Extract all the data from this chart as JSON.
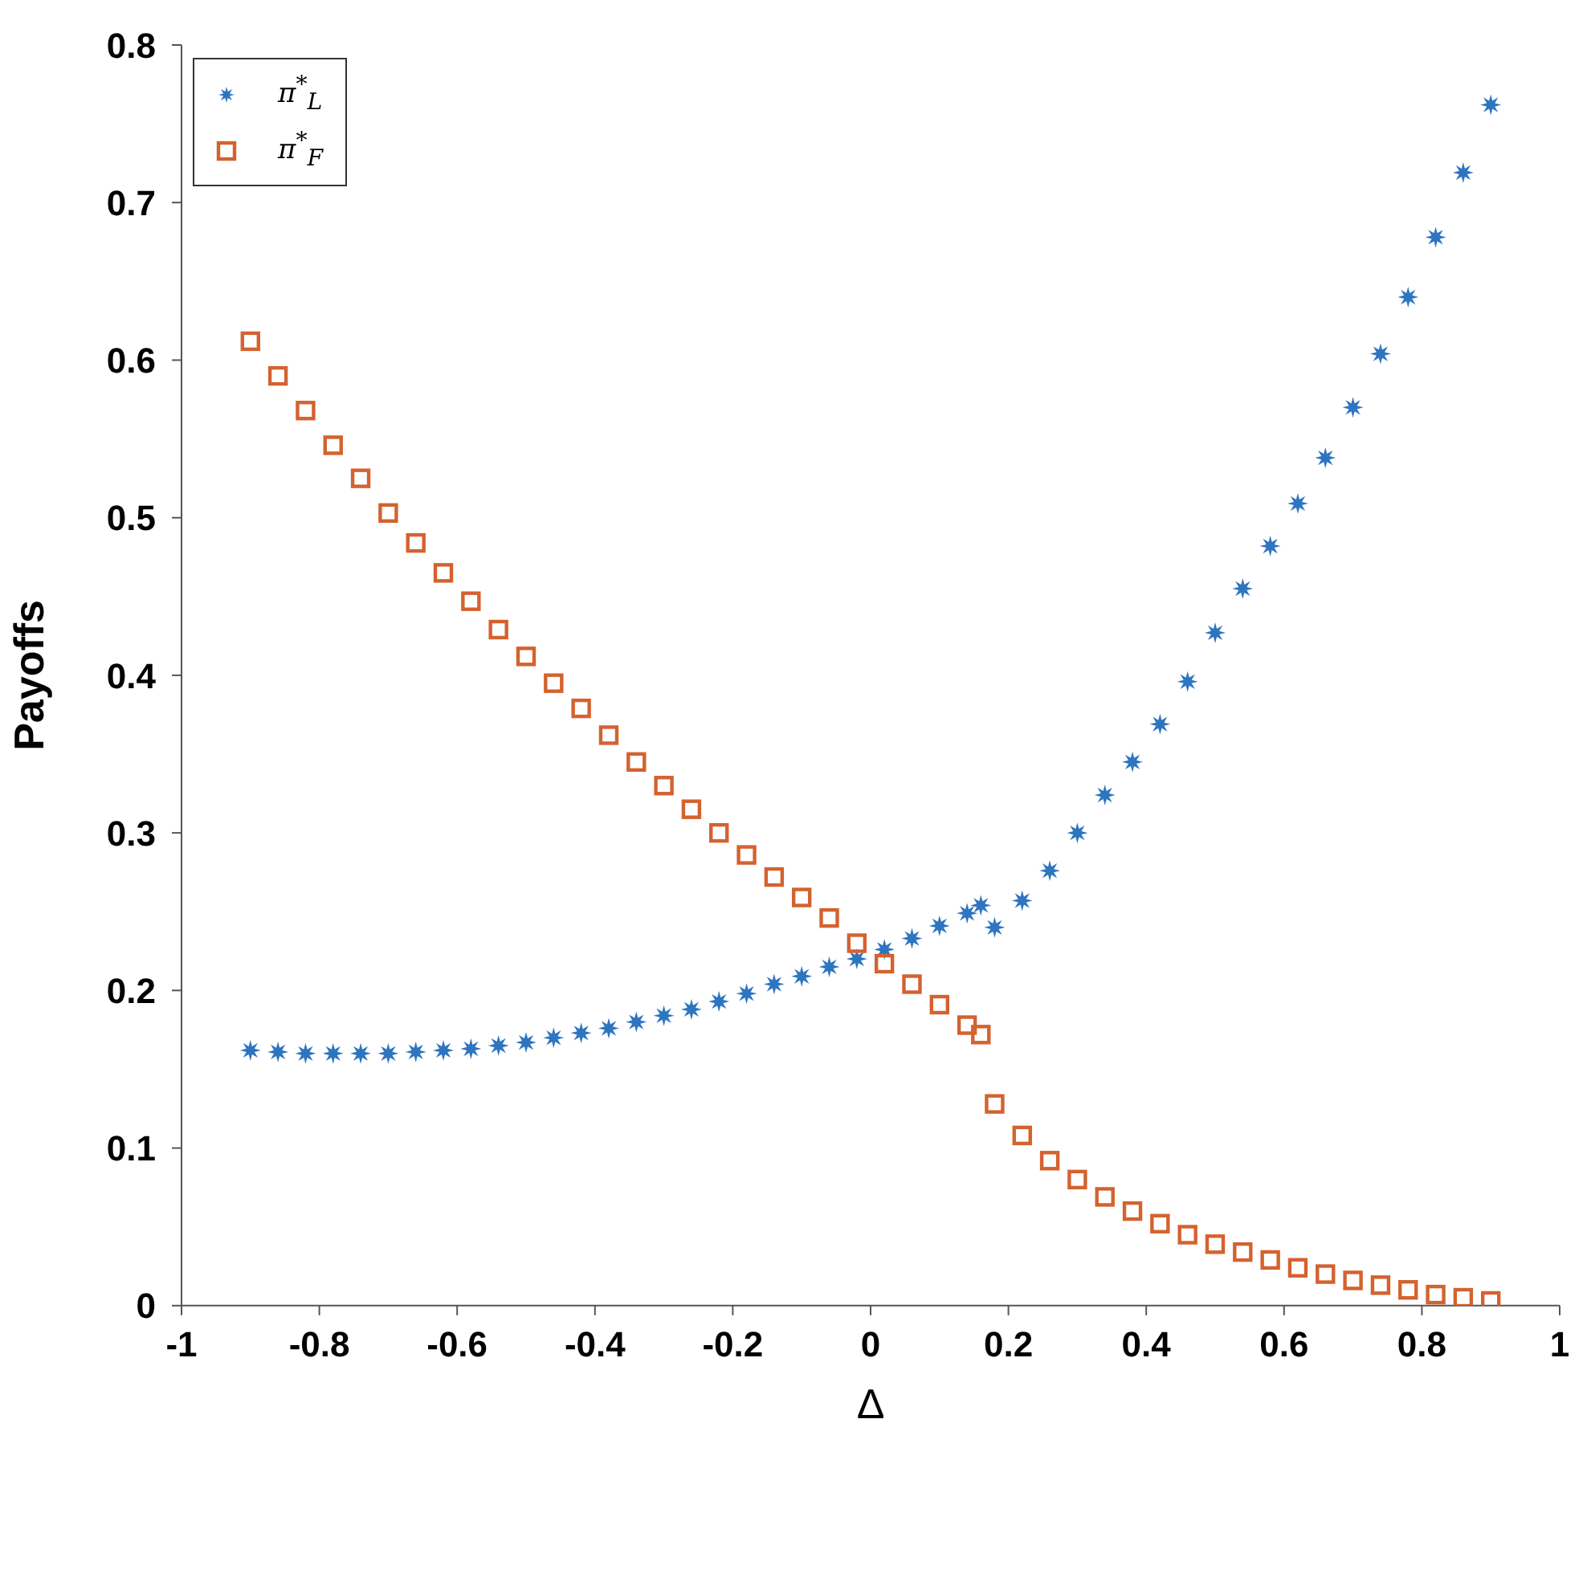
{
  "chart_data": {
    "type": "scatter",
    "xlabel": "Δ",
    "ylabel": "Payoffs",
    "xlim": [
      -1,
      1
    ],
    "xticks": [
      -1,
      -0.8,
      -0.6,
      -0.4,
      -0.2,
      0,
      0.2,
      0.4,
      0.6,
      0.8,
      1
    ],
    "ylim": [
      0,
      0.8
    ],
    "yticks": [
      0,
      0.1,
      0.2,
      0.3,
      0.4,
      0.5,
      0.6,
      0.7,
      0.8
    ],
    "grid": false,
    "legend": "top left",
    "series": [
      {
        "name": "π$^{*}$$_{L}$",
        "color": "#2e75c0",
        "marker": "star",
        "x": [
          -0.9,
          -0.86,
          -0.82,
          -0.78,
          -0.74,
          -0.7,
          -0.66,
          -0.62,
          -0.58,
          -0.54,
          -0.5,
          -0.46,
          -0.42,
          -0.38,
          -0.34,
          -0.3,
          -0.26,
          -0.22,
          -0.18,
          -0.14,
          -0.1,
          -0.06,
          -0.02,
          0.02,
          0.06,
          0.1,
          0.14,
          0.16,
          0.18,
          0.22,
          0.26,
          0.3,
          0.34,
          0.38,
          0.42,
          0.46,
          0.5,
          0.54,
          0.58,
          0.62,
          0.66,
          0.7,
          0.74,
          0.78,
          0.82,
          0.86,
          0.9
        ],
        "values": [
          0.162,
          0.161,
          0.16,
          0.16,
          0.16,
          0.16,
          0.161,
          0.162,
          0.163,
          0.165,
          0.167,
          0.17,
          0.173,
          0.176,
          0.18,
          0.184,
          0.188,
          0.193,
          0.198,
          0.204,
          0.209,
          0.215,
          0.22,
          0.226,
          0.233,
          0.241,
          0.249,
          0.254,
          0.24,
          0.257,
          0.276,
          0.3,
          0.324,
          0.345,
          0.369,
          0.396,
          0.427,
          0.455,
          0.482,
          0.509,
          0.538,
          0.57,
          0.604,
          0.64,
          0.678,
          0.719,
          0.762
        ]
      },
      {
        "name": "π$^{*}$$_{F}$",
        "color": "#d4622f",
        "marker": "square",
        "x": [
          -0.9,
          -0.86,
          -0.82,
          -0.78,
          -0.74,
          -0.7,
          -0.66,
          -0.62,
          -0.58,
          -0.54,
          -0.5,
          -0.46,
          -0.42,
          -0.38,
          -0.34,
          -0.3,
          -0.26,
          -0.22,
          -0.18,
          -0.14,
          -0.1,
          -0.06,
          -0.02,
          0.02,
          0.06,
          0.1,
          0.14,
          0.16,
          0.18,
          0.22,
          0.26,
          0.3,
          0.34,
          0.38,
          0.42,
          0.46,
          0.5,
          0.54,
          0.58,
          0.62,
          0.66,
          0.7,
          0.74,
          0.78,
          0.82,
          0.86,
          0.9
        ],
        "values": [
          0.612,
          0.59,
          0.568,
          0.546,
          0.525,
          0.503,
          0.484,
          0.465,
          0.447,
          0.429,
          0.412,
          0.395,
          0.379,
          0.362,
          0.345,
          0.33,
          0.315,
          0.3,
          0.286,
          0.272,
          0.259,
          0.246,
          0.23,
          0.217,
          0.204,
          0.191,
          0.178,
          0.172,
          0.128,
          0.108,
          0.092,
          0.08,
          0.069,
          0.06,
          0.052,
          0.045,
          0.039,
          0.034,
          0.029,
          0.024,
          0.02,
          0.016,
          0.013,
          0.01,
          0.007,
          0.005,
          0.003
        ]
      }
    ]
  }
}
